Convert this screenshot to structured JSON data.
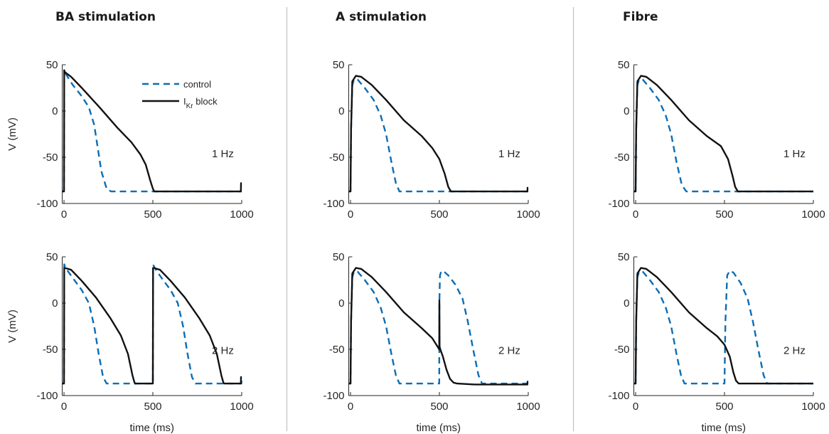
{
  "titles": [
    "BA stimulation",
    "A stimulation",
    "Fibre"
  ],
  "colors": {
    "control": "#0b6eb4",
    "ikr_block": "#111111",
    "axis": "#262626"
  },
  "legend": {
    "control_label": "control",
    "block_label_main": "I",
    "block_label_sub": "Kr",
    "block_label_rest": " block"
  },
  "chart_data": [
    {
      "type": "line",
      "title": "BA stimulation",
      "annotation": "1 Hz",
      "xlabel": "",
      "ylabel": "V (mV)",
      "xlim": [
        -10,
        1000
      ],
      "ylim": [
        -100,
        50
      ],
      "xticks": [
        0,
        500,
        1000
      ],
      "yticks": [
        -100,
        -50,
        0,
        50
      ],
      "legend": "top-right",
      "series": [
        {
          "name": "control",
          "style": "dashed",
          "x": [
            -10,
            0,
            1,
            5,
            20,
            50,
            100,
            140,
            170,
            190,
            210,
            240,
            265,
            300,
            500,
            800,
            998,
            1000
          ],
          "y": [
            -87,
            -87,
            45,
            42,
            37,
            28,
            16,
            4,
            -15,
            -40,
            -65,
            -84,
            -87,
            -87,
            -87,
            -87,
            -87,
            -87
          ]
        },
        {
          "name": "IKr block",
          "style": "solid",
          "x": [
            -10,
            0,
            1,
            5,
            40,
            100,
            200,
            300,
            380,
            430,
            460,
            485,
            500,
            508,
            515,
            600,
            800,
            995,
            996,
            1000
          ],
          "y": [
            -87,
            -87,
            44,
            42,
            37,
            25,
            4,
            -18,
            -34,
            -47,
            -58,
            -75,
            -84,
            -87,
            -87,
            -87,
            -87,
            -87,
            -78,
            -78
          ]
        }
      ]
    },
    {
      "type": "line",
      "title": "A stimulation",
      "annotation": "1 Hz",
      "xlabel": "",
      "ylabel": "",
      "xlim": [
        -10,
        1000
      ],
      "ylim": [
        -100,
        50
      ],
      "xticks": [
        0,
        500,
        1000
      ],
      "yticks": [
        -100,
        -50,
        0,
        50
      ],
      "series": [
        {
          "name": "control",
          "style": "dashed",
          "x": [
            -10,
            0,
            3,
            10,
            20,
            40,
            80,
            130,
            170,
            200,
            230,
            255,
            275,
            300,
            1000
          ],
          "y": [
            -87,
            -87,
            -20,
            28,
            34,
            34,
            25,
            12,
            -5,
            -25,
            -55,
            -78,
            -87,
            -87,
            -87
          ]
        },
        {
          "name": "IKr block",
          "style": "solid",
          "x": [
            -10,
            0,
            3,
            10,
            30,
            60,
            120,
            200,
            300,
            400,
            460,
            500,
            530,
            550,
            565,
            600,
            800,
            995,
            996,
            1000
          ],
          "y": [
            -87,
            -87,
            -20,
            32,
            38,
            37,
            28,
            12,
            -10,
            -27,
            -40,
            -52,
            -68,
            -82,
            -87,
            -87,
            -87,
            -87,
            -83,
            -83
          ]
        }
      ]
    },
    {
      "type": "line",
      "title": "Fibre",
      "annotation": "1 Hz",
      "xlabel": "",
      "ylabel": "",
      "xlim": [
        -10,
        1000
      ],
      "ylim": [
        -100,
        50
      ],
      "xticks": [
        0,
        500,
        1000
      ],
      "yticks": [
        -100,
        -50,
        0,
        50
      ],
      "series": [
        {
          "name": "control",
          "style": "dashed",
          "x": [
            -10,
            0,
            3,
            10,
            20,
            40,
            80,
            130,
            170,
            200,
            230,
            260,
            285,
            300,
            1000
          ],
          "y": [
            -87,
            -87,
            -20,
            28,
            34,
            34,
            25,
            12,
            -5,
            -25,
            -55,
            -80,
            -87,
            -87,
            -87
          ]
        },
        {
          "name": "IKr block",
          "style": "solid",
          "x": [
            -10,
            0,
            3,
            10,
            30,
            60,
            120,
            200,
            300,
            400,
            480,
            520,
            545,
            560,
            575,
            600,
            1000
          ],
          "y": [
            -87,
            -87,
            -20,
            32,
            38,
            37,
            28,
            12,
            -10,
            -27,
            -38,
            -52,
            -70,
            -82,
            -87,
            -87,
            -87
          ]
        }
      ]
    },
    {
      "type": "line",
      "title": "",
      "annotation": "2 Hz",
      "xlabel": "time (ms)",
      "ylabel": "V (mV)",
      "xlim": [
        -10,
        1000
      ],
      "ylim": [
        -100,
        50
      ],
      "xticks": [
        0,
        500,
        1000
      ],
      "yticks": [
        -100,
        -50,
        0,
        50
      ],
      "series": [
        {
          "name": "control",
          "style": "dashed",
          "x": [
            -10,
            0,
            1,
            5,
            20,
            50,
            100,
            140,
            170,
            195,
            220,
            240,
            500,
            501,
            505,
            520,
            550,
            600,
            640,
            670,
            695,
            720,
            740,
            998,
            1000
          ],
          "y": [
            -87,
            -87,
            42,
            40,
            35,
            27,
            14,
            0,
            -25,
            -55,
            -80,
            -87,
            -87,
            42,
            40,
            35,
            27,
            14,
            0,
            -25,
            -55,
            -80,
            -87,
            -87,
            -80
          ]
        },
        {
          "name": "IKr block",
          "style": "solid",
          "x": [
            -10,
            0,
            1,
            5,
            40,
            100,
            180,
            260,
            320,
            360,
            385,
            395,
            400,
            500,
            501,
            505,
            540,
            600,
            680,
            760,
            820,
            860,
            885,
            895,
            900,
            995,
            996,
            1000
          ],
          "y": [
            -87,
            -87,
            38,
            38,
            36,
            24,
            6,
            -16,
            -35,
            -55,
            -78,
            -85,
            -87,
            -87,
            38,
            38,
            36,
            24,
            6,
            -16,
            -35,
            -55,
            -78,
            -85,
            -87,
            -87,
            -80,
            -80
          ]
        }
      ]
    },
    {
      "type": "line",
      "title": "",
      "annotation": "2 Hz",
      "xlabel": "time (ms)",
      "ylabel": "",
      "xlim": [
        -10,
        1000
      ],
      "ylim": [
        -100,
        50
      ],
      "xticks": [
        0,
        500,
        1000
      ],
      "yticks": [
        -100,
        -50,
        0,
        50
      ],
      "series": [
        {
          "name": "control",
          "style": "dashed",
          "x": [
            -10,
            0,
            3,
            10,
            20,
            40,
            80,
            130,
            170,
            200,
            230,
            255,
            275,
            300,
            499,
            500,
            503,
            510,
            520,
            550,
            590,
            630,
            660,
            690,
            720,
            740,
            760,
            1000
          ],
          "y": [
            -87,
            -87,
            -20,
            28,
            34,
            34,
            25,
            12,
            -5,
            -25,
            -55,
            -78,
            -87,
            -87,
            -87,
            0,
            30,
            34,
            35,
            30,
            20,
            5,
            -20,
            -50,
            -78,
            -87,
            -87,
            -87
          ]
        },
        {
          "name": "IKr block",
          "style": "solid",
          "x": [
            -10,
            0,
            3,
            10,
            30,
            60,
            120,
            200,
            300,
            400,
            460,
            499,
            500,
            501,
            505,
            520,
            540,
            560,
            580,
            600,
            700,
            995,
            996,
            1000
          ],
          "y": [
            -87,
            -87,
            -20,
            32,
            38,
            37,
            28,
            12,
            -10,
            -27,
            -38,
            -50,
            3,
            -47,
            -50,
            -58,
            -72,
            -82,
            -86,
            -87,
            -88,
            -88,
            -85,
            -85
          ]
        }
      ]
    },
    {
      "type": "line",
      "title": "",
      "annotation": "2 Hz",
      "xlabel": "time (ms)",
      "ylabel": "",
      "xlim": [
        -10,
        1000
      ],
      "ylim": [
        -100,
        50
      ],
      "xticks": [
        0,
        500,
        1000
      ],
      "yticks": [
        -100,
        -50,
        0,
        50
      ],
      "series": [
        {
          "name": "control",
          "style": "dashed",
          "x": [
            -10,
            0,
            3,
            10,
            20,
            40,
            80,
            130,
            170,
            200,
            230,
            255,
            275,
            300,
            500,
            505,
            515,
            530,
            550,
            590,
            630,
            660,
            690,
            720,
            740,
            760,
            1000
          ],
          "y": [
            -87,
            -87,
            -20,
            28,
            34,
            34,
            25,
            12,
            -5,
            -25,
            -55,
            -78,
            -87,
            -87,
            -87,
            -20,
            30,
            35,
            33,
            22,
            5,
            -20,
            -50,
            -78,
            -87,
            -87,
            -87
          ]
        },
        {
          "name": "IKr block",
          "style": "solid",
          "x": [
            -10,
            0,
            3,
            10,
            30,
            60,
            120,
            200,
            300,
            400,
            460,
            500,
            530,
            550,
            565,
            580,
            600,
            1000
          ],
          "y": [
            -87,
            -87,
            -20,
            32,
            38,
            37,
            28,
            12,
            -10,
            -27,
            -36,
            -45,
            -58,
            -75,
            -84,
            -87,
            -87,
            -87
          ]
        }
      ]
    }
  ]
}
